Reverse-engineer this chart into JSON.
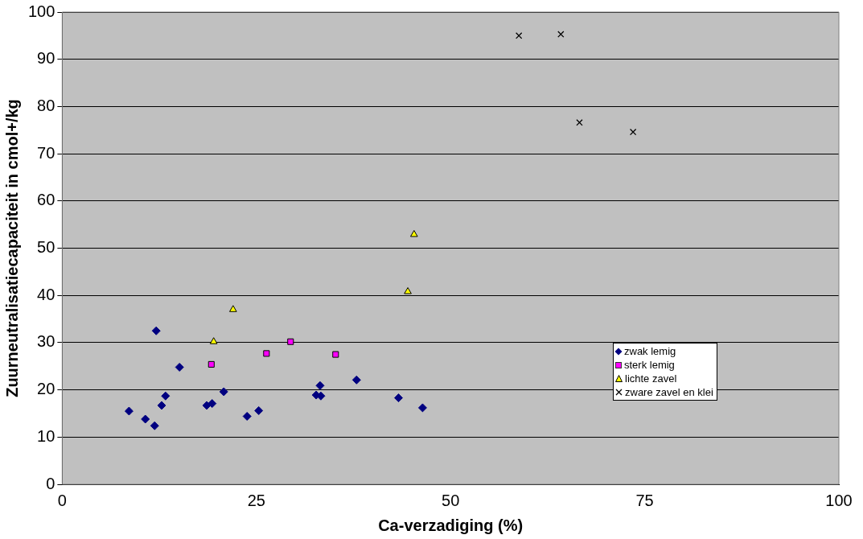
{
  "chart_data": {
    "type": "scatter",
    "xlabel": "Ca-verzadiging (%)",
    "ylabel": "Zuurneutralisatiecapaciteit in cmol+/kg",
    "xlim": [
      0,
      100
    ],
    "xticks": [
      0,
      25,
      50,
      75,
      100
    ],
    "ylim": [
      0,
      100
    ],
    "yticks": [
      0,
      10,
      20,
      30,
      40,
      50,
      60,
      70,
      80,
      90,
      100
    ],
    "grid": "y",
    "legend": "right",
    "series": [
      {
        "name": "zwak lemig",
        "color": "#000080",
        "marker": "diamond",
        "x": [
          8.6,
          10.7,
          11.9,
          12.1,
          12.8,
          13.3,
          15.1,
          18.6,
          19.3,
          20.8,
          23.8,
          25.3,
          32.7,
          33.2,
          33.3,
          37.9,
          43.3,
          46.4
        ],
        "values": [
          15.5,
          13.8,
          12.4,
          32.5,
          16.7,
          18.7,
          24.8,
          16.7,
          17.1,
          19.6,
          14.4,
          15.6,
          18.9,
          20.9,
          18.7,
          22.1,
          18.3,
          16.2
        ]
      },
      {
        "name": "sterk lemig",
        "color": "#ff00ff",
        "marker": "square",
        "x": [
          19.2,
          26.3,
          29.4,
          35.2
        ],
        "values": [
          25.4,
          27.7,
          30.2,
          27.5
        ]
      },
      {
        "name": "lichte zavel",
        "color": "#ffff00",
        "marker": "triangle",
        "x": [
          19.5,
          22.0,
          44.5,
          45.3
        ],
        "values": [
          30.2,
          37.0,
          40.8,
          52.9
        ]
      },
      {
        "name": "zware zavel en klei",
        "color": "#000000",
        "marker": "cross",
        "x": [
          58.8,
          64.2,
          66.6,
          73.5
        ],
        "values": [
          95.0,
          95.3,
          76.6,
          74.6
        ]
      }
    ]
  }
}
